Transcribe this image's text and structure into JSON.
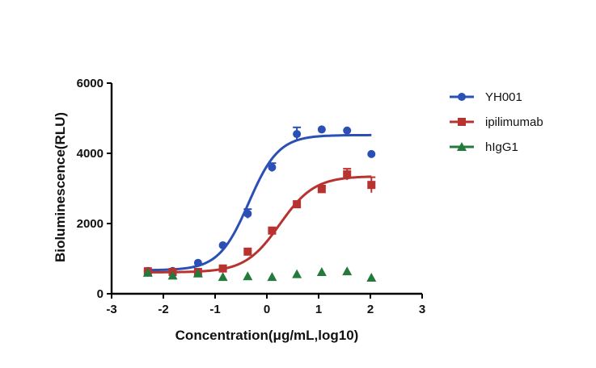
{
  "chart_data": {
    "type": "scatter",
    "title": "",
    "xlabel": "Concentration(μg/mL,log10)",
    "ylabel": "Bioluminescence(RLU)",
    "xlim": [
      -3,
      3
    ],
    "ylim": [
      0,
      6000
    ],
    "xticks": [
      -3,
      -2,
      -1,
      0,
      1,
      2,
      3
    ],
    "yticks": [
      0,
      2000,
      4000,
      6000
    ],
    "grid": false,
    "legend_position": "top-right",
    "series": [
      {
        "name": "YH001",
        "color": "#2a4fb5",
        "marker": "circle",
        "x": [
          -2.3,
          -1.82,
          -1.33,
          -0.85,
          -0.37,
          0.1,
          0.58,
          1.06,
          1.55,
          2.02
        ],
        "y": [
          650,
          650,
          880,
          1380,
          2280,
          3600,
          4550,
          4680,
          4650,
          3980
        ],
        "error": [
          0,
          0,
          0,
          0,
          130,
          120,
          190,
          0,
          0,
          0
        ],
        "fit": {
          "bottom": 670,
          "top": 4520,
          "logEC50": -0.35,
          "hill": 1.5
        }
      },
      {
        "name": "ipilimumab",
        "color": "#b8322f",
        "marker": "square",
        "x": [
          -2.3,
          -1.82,
          -1.33,
          -0.85,
          -0.37,
          0.1,
          0.58,
          1.06,
          1.55,
          2.02
        ],
        "y": [
          640,
          620,
          620,
          720,
          1200,
          1800,
          2550,
          2980,
          3400,
          3100
        ],
        "error": [
          0,
          0,
          0,
          0,
          0,
          0,
          0,
          100,
          160,
          220
        ],
        "fit": {
          "bottom": 610,
          "top": 3350,
          "logEC50": 0.25,
          "hill": 1.3
        }
      },
      {
        "name": "hIgG1",
        "color": "#237a3c",
        "marker": "triangle",
        "x": [
          -2.3,
          -1.82,
          -1.33,
          -0.85,
          -0.37,
          0.1,
          0.58,
          1.06,
          1.55,
          2.02
        ],
        "y": [
          600,
          520,
          580,
          480,
          500,
          480,
          560,
          620,
          640,
          460
        ],
        "error": [
          0,
          0,
          0,
          0,
          0,
          0,
          0,
          0,
          0,
          0
        ]
      }
    ]
  }
}
